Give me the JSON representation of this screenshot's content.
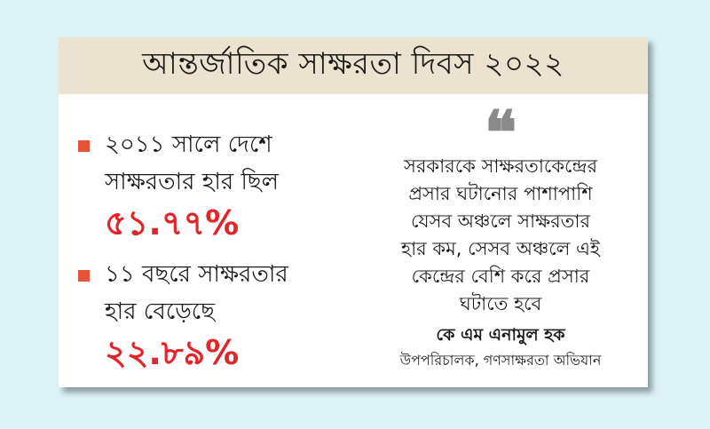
{
  "header": {
    "title": "আন্তর্জাতিক সাক্ষরতা দিবস ২০২২"
  },
  "stats": [
    {
      "lines": [
        "২০১১ সালে দেশে",
        "সাক্ষরতার হার ছিল"
      ],
      "value": "৫১.৭৭%"
    },
    {
      "lines": [
        "১১ বছরে সাক্ষরতার",
        "হার বেড়েছে"
      ],
      "value": "২২.৮৯%"
    }
  ],
  "quote": {
    "mark": "❝",
    "lines": [
      "সরকারকে সাক্ষরতাকেন্দ্রের",
      "প্রসার ঘটানোর পাশাপাশি",
      "যেসব অঞ্চলে সাক্ষরতার",
      "হার কম, সেসব অঞ্চলে এই",
      "কেন্দ্রের বেশি করে প্রসার",
      "ঘটাতে হবে"
    ],
    "author": "কে এম এনামুল হক",
    "author_title": "উপপরিচালক, গণসাক্ষরতা অভিযান"
  },
  "colors": {
    "background": "#dcf2f6",
    "header_bg": "#ece2d0",
    "accent_red": "#e0262a",
    "bullet": "#e8543a"
  }
}
